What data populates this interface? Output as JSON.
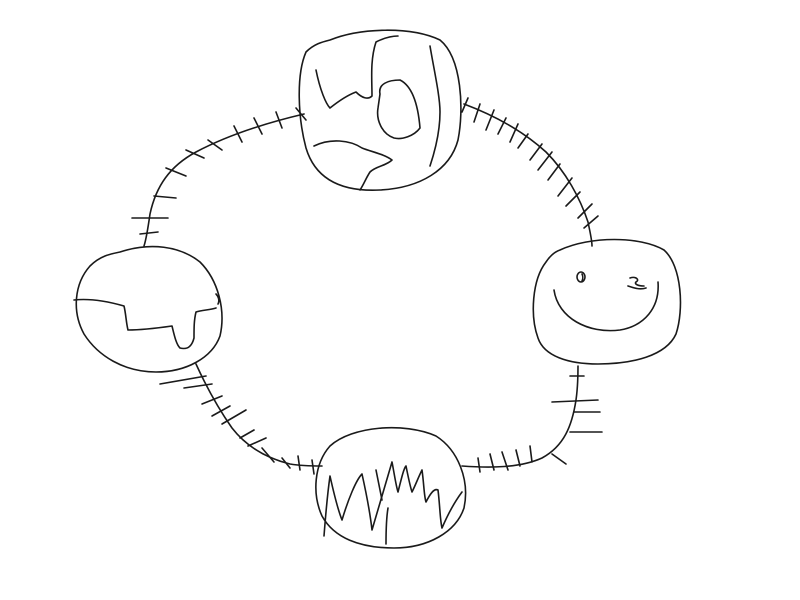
{
  "drawing": {
    "background": "#ffffff",
    "ink": "#1a1a1a"
  }
}
